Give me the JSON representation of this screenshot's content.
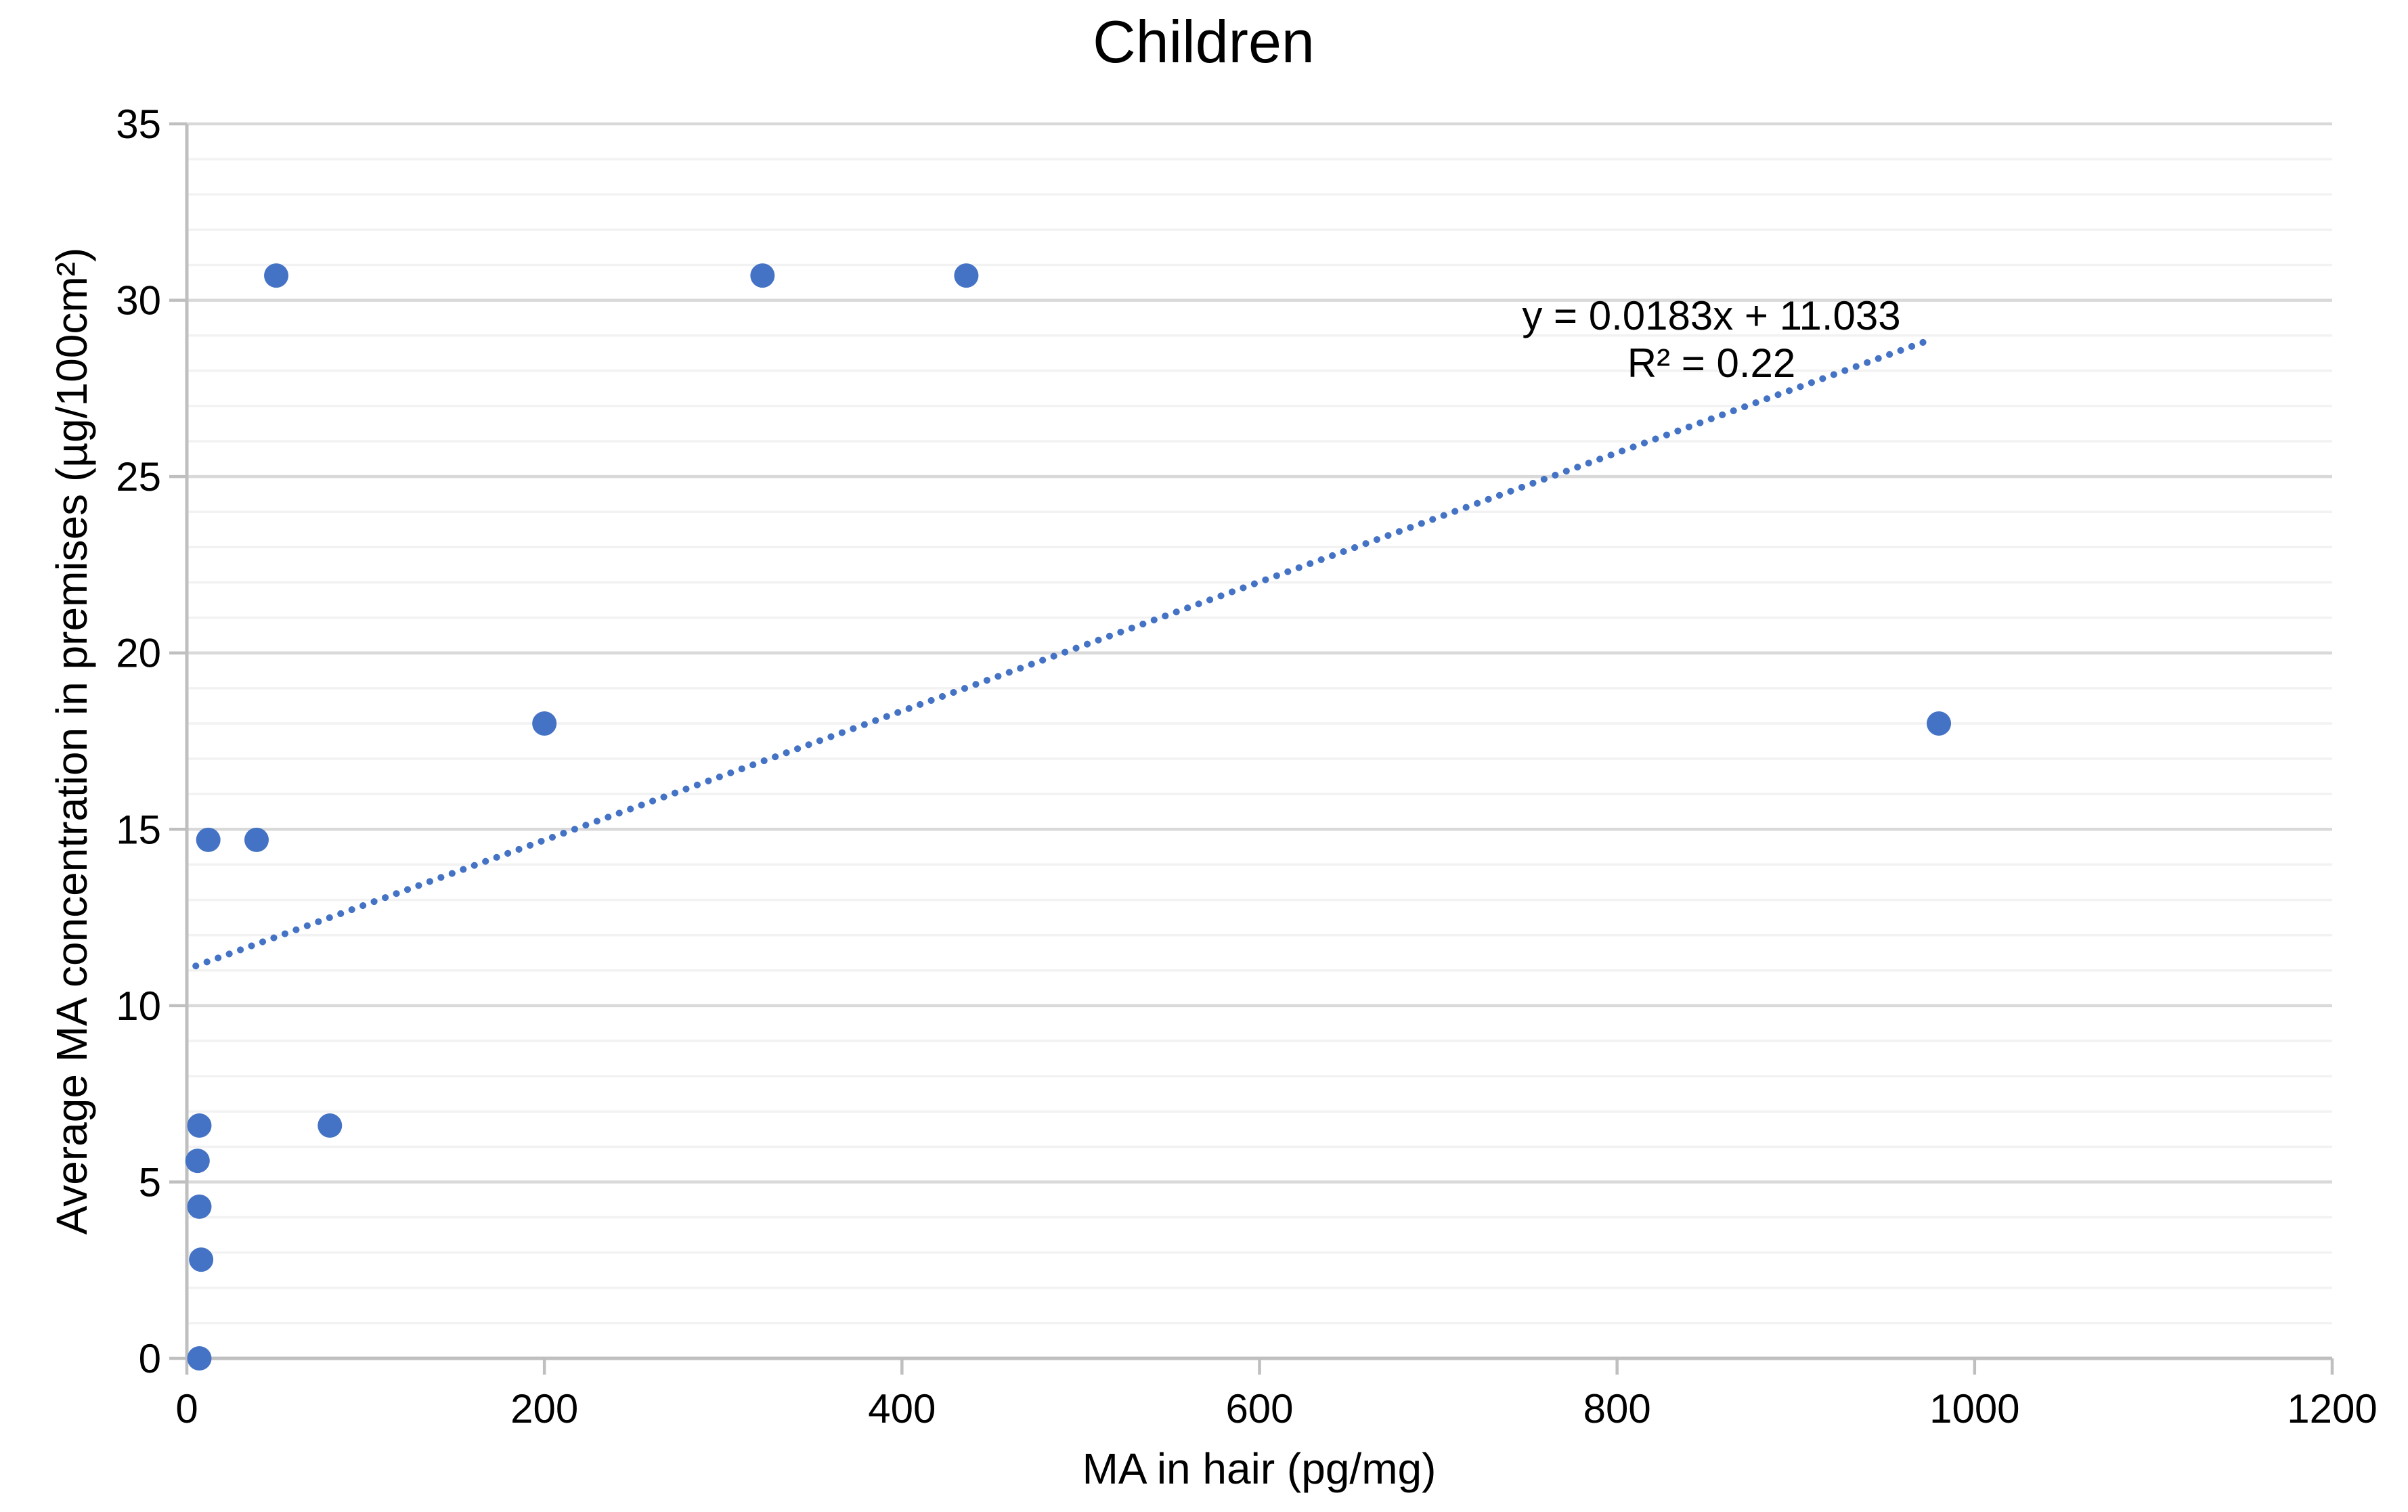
{
  "chart_data": {
    "type": "scatter",
    "title": "Children",
    "xlabel": "MA in hair (pg/mg)",
    "ylabel": "Average MA concentration in premises (µg/100cm²)",
    "xlim": [
      0,
      1200
    ],
    "ylim": [
      0,
      35
    ],
    "x_ticks": [
      0,
      200,
      400,
      600,
      800,
      1000,
      1200
    ],
    "y_ticks": [
      0,
      5,
      10,
      15,
      20,
      25,
      30,
      35
    ],
    "grid": {
      "horizontal_minor_step": 1,
      "horizontal_major_step": 5,
      "vertical": false
    },
    "legend_position": "none",
    "series": [
      {
        "name": "Children",
        "marker": "circle",
        "points": [
          [
            50,
            30.7
          ],
          [
            322,
            30.7
          ],
          [
            436,
            30.7
          ],
          [
            200,
            18
          ],
          [
            980,
            18
          ],
          [
            12,
            14.7
          ],
          [
            39,
            14.7
          ],
          [
            7,
            6.6
          ],
          [
            80,
            6.6
          ],
          [
            6,
            5.6
          ],
          [
            7,
            4.3
          ],
          [
            8,
            2.8
          ],
          [
            7,
            0
          ]
        ]
      }
    ],
    "trendline": {
      "slope": 0.0183,
      "intercept": 11.033,
      "r2": 0.22,
      "equation_label": "y = 0.0183x + 11.033",
      "r2_label": "R² = 0.22",
      "x_start": 5,
      "x_end": 975,
      "style": "dotted"
    },
    "colors": {
      "marker": "#4472C4",
      "trendline": "#4472C4",
      "axis": "#BFBFBF",
      "grid_major": "#D9D9D9",
      "grid_minor": "#F2F2F2",
      "text": "#000000"
    }
  }
}
